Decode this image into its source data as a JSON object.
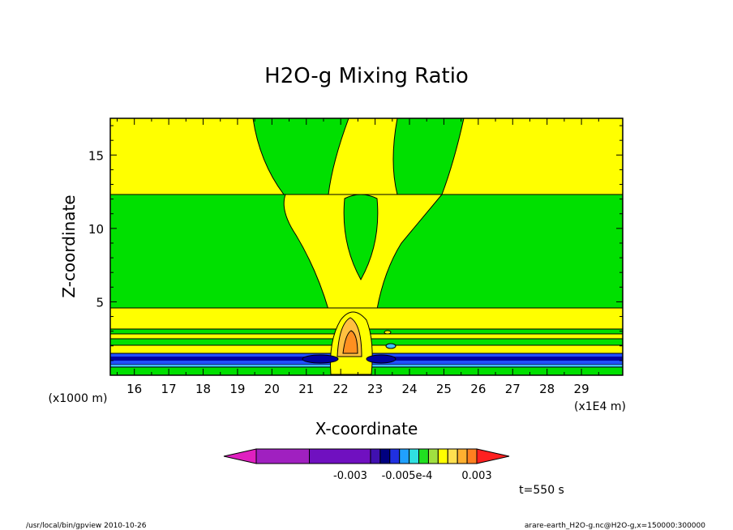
{
  "chart_data": {
    "type": "heatmap",
    "title": "H2O-g Mixing Ratio",
    "xlabel": "X-coordinate",
    "ylabel": "Z-coordinate",
    "x_multiplier": "(x1E4 m)",
    "y_multiplier": "(x1000 m)",
    "xlim": [
      15.3,
      30.2
    ],
    "ylim": [
      0,
      17.5
    ],
    "x_ticks": [
      "16",
      "17",
      "18",
      "19",
      "20",
      "21",
      "22",
      "23",
      "24",
      "25",
      "26",
      "27",
      "28",
      "29"
    ],
    "y_ticks": [
      "5",
      "10",
      "15"
    ],
    "colorbar": {
      "colors": [
        "#e020c0",
        "#a020c0",
        "#7010c0",
        "#4010b0",
        "#000080",
        "#2030e0",
        "#20a0ff",
        "#30e0e0",
        "#20e020",
        "#a0e040",
        "#ffff00",
        "#ffe050",
        "#ffb030",
        "#ff8020",
        "#ff2020"
      ],
      "labels": [
        "-0.003",
        "-0.005e-4",
        "0.003"
      ]
    },
    "regions": {
      "background": "#00e000",
      "yellow": "#ffff00",
      "orange": "#ffc040",
      "dark_orange": "#ff9020",
      "dark_blue": "#0000a0",
      "blue": "#2050ff",
      "cyan": "#40c0ff"
    },
    "fields": {
      "yellow_bands_z": [
        [
          0.5,
          1.0
        ],
        [
          2.9,
          3.1
        ],
        [
          3.5,
          4.7
        ],
        [
          12.5,
          17.5
        ]
      ],
      "blue_band_z": [
        1.0,
        1.35
      ],
      "plume_x": 22.2,
      "plume_top_z": 12.7
    }
  },
  "annotations": {
    "time": "t=550 s",
    "footer_left": "/usr/local/bin/gpview  2010-10-26",
    "footer_right": "arare-earth_H2O-g.nc@H2O-g,x=150000:300000"
  }
}
